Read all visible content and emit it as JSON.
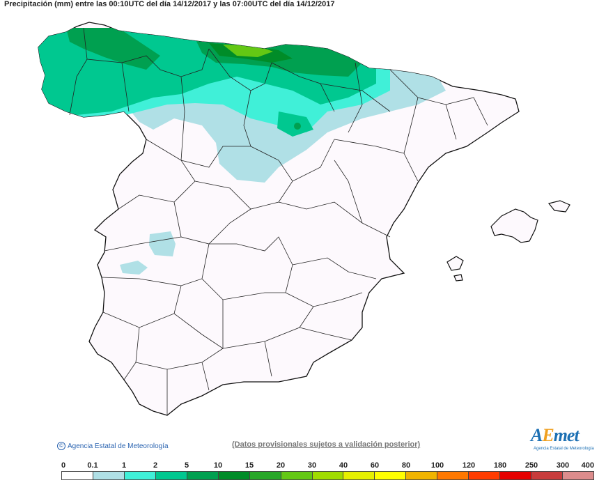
{
  "title": "Precipitación (mm) entre las 00:10UTC del día 14/12/2017 y las 07:00UTC del día 14/12/2017",
  "credit": "Agencia Estatal de Meteorología",
  "disclaimer": "(Datos provisionales sujetos a validación posterior)",
  "logo": {
    "word_a": "A",
    "word_e": "E",
    "word_rest": "met",
    "sub": "Agencia Estatal de Meteorología"
  },
  "legend": {
    "thresholds": [
      "0",
      "0.1",
      "1",
      "2",
      "5",
      "10",
      "15",
      "20",
      "30",
      "40",
      "60",
      "80",
      "100",
      "120",
      "180",
      "250",
      "300",
      "400"
    ],
    "colors": [
      "#ffffff",
      "#b0e0e6",
      "#40f0d8",
      "#00c890",
      "#00a050",
      "#008c28",
      "#28a828",
      "#64c814",
      "#a0dc00",
      "#e6f000",
      "#ffff00",
      "#f0b400",
      "#ff7800",
      "#ff3c00",
      "#e60000",
      "#c83c3c",
      "#dc8c8c",
      "#f0c8c8"
    ]
  }
}
